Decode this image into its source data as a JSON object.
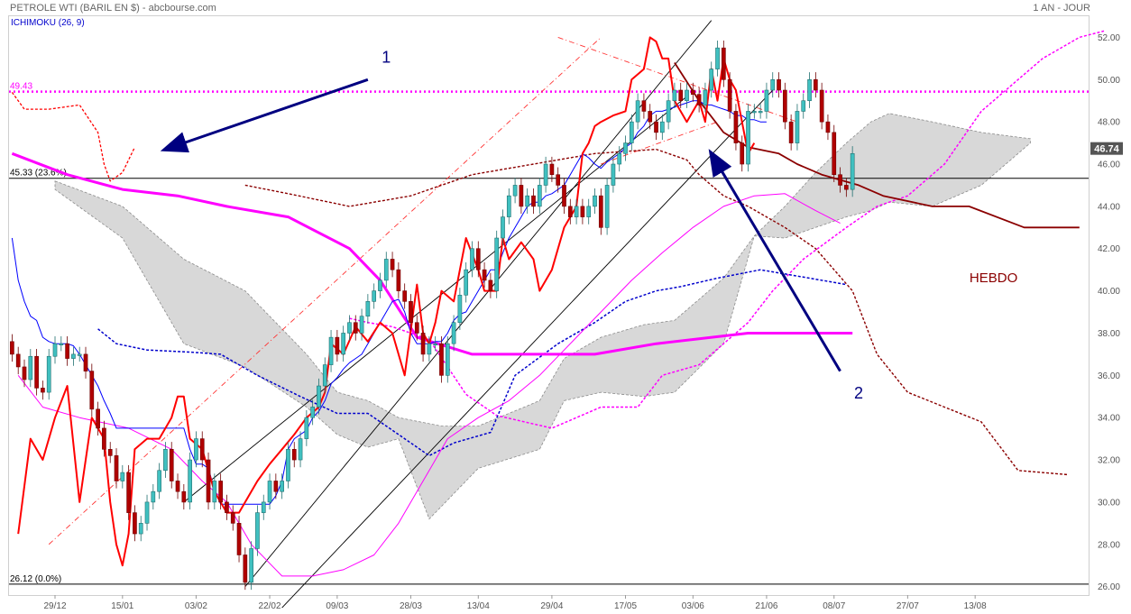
{
  "header": {
    "title": "PETROLE WTI (BARIL EN $) - abcbourse.com",
    "period": "1 AN - JOUR",
    "indicator": "ICHIMOKU (26, 9)"
  },
  "chart_data": {
    "type": "line",
    "ylim": [
      25.6,
      53.0
    ],
    "y_ticks": [
      26,
      28,
      30,
      32,
      34,
      36,
      38,
      40,
      42,
      44,
      46,
      48,
      50,
      52
    ],
    "y_tick_labels": [
      "26.00",
      "28.00",
      "30.00",
      "32.00",
      "34.00",
      "36.00",
      "38.00",
      "40.00",
      "42.00",
      "44.00",
      "46.00",
      "48.00",
      "50.00",
      "52.00"
    ],
    "x_tick_labels": [
      "29/12",
      "15/01",
      "03/02",
      "22/02",
      "09/03",
      "28/03",
      "13/04",
      "29/04",
      "17/05",
      "03/06",
      "21/06",
      "08/07",
      "27/07",
      "13/08"
    ],
    "x_tick_index": [
      7,
      18,
      30,
      42,
      53,
      65,
      76,
      88,
      100,
      111,
      123,
      134,
      146,
      157
    ],
    "n_slots": 176,
    "last_price": "46.74",
    "grid": false,
    "levels": [
      {
        "label": "49.43",
        "value": 49.43,
        "color": "#ff00ff",
        "style": "dotted"
      },
      {
        "label": "45.33  (23.6%)",
        "value": 45.33,
        "color": "#000000",
        "style": "solid"
      },
      {
        "label": "26.12  (0.0%)",
        "value": 26.12,
        "color": "#000000",
        "style": "solid"
      }
    ],
    "annotations": [
      {
        "text": "1",
        "color": "#000080"
      },
      {
        "text": "2",
        "color": "#000080"
      },
      {
        "text": "HEBDO",
        "color": "#8b0000"
      }
    ],
    "colors": {
      "up": "#40c0c0",
      "down": "#b00000",
      "tenkan": "#0000ff",
      "kijun": "#ff00ff",
      "chikou": "#ff0000",
      "cloud": "#d8d8d8",
      "weekly_kijun": "#ff00ff",
      "weekly_tenkan": "#8b0000",
      "channel": "#000000"
    },
    "candle_close": [
      37.0,
      36.4,
      35.8,
      36.9,
      35.4,
      35.2,
      36.9,
      37.5,
      37.5,
      36.8,
      37.0,
      37.0,
      36.2,
      34.4,
      33.5,
      32.5,
      32.2,
      31.0,
      31.4,
      29.5,
      28.5,
      29.0,
      30.0,
      30.5,
      31.5,
      32.5,
      31.0,
      30.5,
      30.0,
      32.0,
      33.0,
      32.0,
      30.0,
      31.0,
      30.0,
      29.5,
      29.0,
      27.5,
      26.2,
      27.8,
      29.5,
      30.0,
      31.0,
      30.5,
      31.0,
      32.5,
      32.0,
      33.0,
      34.0,
      34.5,
      35.5,
      36.5,
      37.8,
      37.0,
      38.0,
      38.5,
      38.0,
      38.8,
      39.5,
      40.0,
      40.5,
      41.5,
      41.0,
      40.0,
      39.5,
      38.5,
      38.0,
      37.0,
      37.5,
      37.5,
      36.0,
      37.5,
      38.5,
      39.8,
      41.0,
      42.0,
      41.0,
      40.5,
      40.0,
      42.5,
      43.5,
      44.5,
      45.0,
      44.0,
      44.5,
      44.0,
      45.0,
      46.0,
      45.5,
      45.0,
      44.0,
      43.5,
      44.0,
      43.5,
      44.0,
      44.5,
      43.0,
      45.0,
      46.0,
      46.5,
      47.0,
      48.0,
      49.0,
      48.5,
      48.0,
      47.5,
      48.0,
      49.0,
      49.5,
      49.0,
      49.5,
      49.3,
      48.8,
      49.5,
      50.5,
      51.5,
      50.0,
      48.5,
      47.0,
      46.0,
      48.5,
      48.5,
      48.5,
      49.5,
      50.0,
      49.5,
      48.0,
      47.0,
      48.5,
      49.0,
      50.0,
      49.5,
      48.0,
      47.5,
      45.5,
      45.0,
      44.8,
      46.5
    ],
    "tenkan": [
      42.5,
      40.5,
      39.5,
      38.8,
      38.6,
      37.8,
      37.6,
      37.5,
      37.5,
      37.5,
      37.4,
      37.0,
      36.5,
      36.0,
      35.5,
      34.8,
      34.2,
      33.5,
      33.5,
      33.5,
      33.5,
      33.5,
      33.5,
      33.5,
      33.5,
      33.5,
      33.5,
      33.5,
      33.5,
      32.5,
      31.8,
      31.8,
      31.6,
      30.6,
      29.9,
      29.9,
      29.9,
      29.9,
      29.9,
      29.9,
      29.9,
      29.9,
      29.9,
      30.3,
      31.0,
      32.5,
      33.0,
      33.2,
      33.4,
      34.0,
      34.3,
      34.8,
      35.6,
      35.9,
      36.3,
      36.6,
      36.8,
      37.0,
      37.5,
      38.0,
      38.5,
      39.0,
      39.5,
      39.6,
      39.0,
      38.0,
      37.5,
      37.5,
      37.5,
      37.6,
      37.6,
      38.0,
      38.6,
      38.9,
      39.0,
      39.5,
      40.0,
      40.5,
      41.0,
      41.0,
      41.8,
      42.5,
      43.0,
      43.5,
      44.0,
      44.2,
      44.2,
      44.5,
      44.6,
      44.8,
      45.0,
      45.5,
      46.0,
      46.5,
      46.3,
      46.0,
      45.8,
      46.1,
      46.3,
      46.5,
      46.8,
      47.0,
      47.5,
      47.8,
      48.3,
      48.5,
      48.5,
      48.6,
      48.7,
      48.8,
      48.9,
      49.0,
      49.0,
      48.8,
      48.8,
      48.7,
      48.6,
      48.5,
      48.3,
      48.3,
      48.1,
      48.1,
      48.0,
      48.0
    ]
  }
}
